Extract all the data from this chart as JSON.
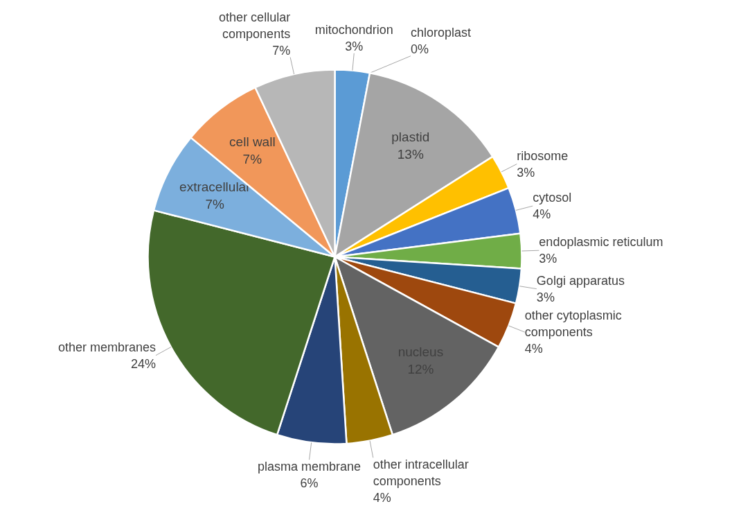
{
  "chart_data": {
    "type": "pie",
    "categories": [
      "mitochondrion",
      "chloroplast",
      "plastid",
      "ribosome",
      "cytosol",
      "endoplasmic reticulum",
      "Golgi apparatus",
      "other cytoplasmic components",
      "nucleus",
      "other intracellular components",
      "plasma membrane",
      "other membranes",
      "extracellular",
      "cell wall",
      "other cellular components"
    ],
    "values": [
      3,
      0,
      13,
      3,
      4,
      3,
      3,
      4,
      12,
      4,
      6,
      24,
      7,
      7,
      7
    ],
    "colors": [
      "#5b9bd5",
      "#ed7d31",
      "#a5a5a5",
      "#ffc000",
      "#4472c4",
      "#70ad47",
      "#255e91",
      "#9e480e",
      "#636363",
      "#997300",
      "#264478",
      "#43682b",
      "#7cafdd",
      "#f1975a",
      "#b7b7b7"
    ],
    "value_labels": [
      "3%",
      "0%",
      "13%",
      "3%",
      "4%",
      "3%",
      "3%",
      "4%",
      "12%",
      "4%",
      "6%",
      "24%",
      "7%",
      "7%",
      "7%"
    ]
  }
}
